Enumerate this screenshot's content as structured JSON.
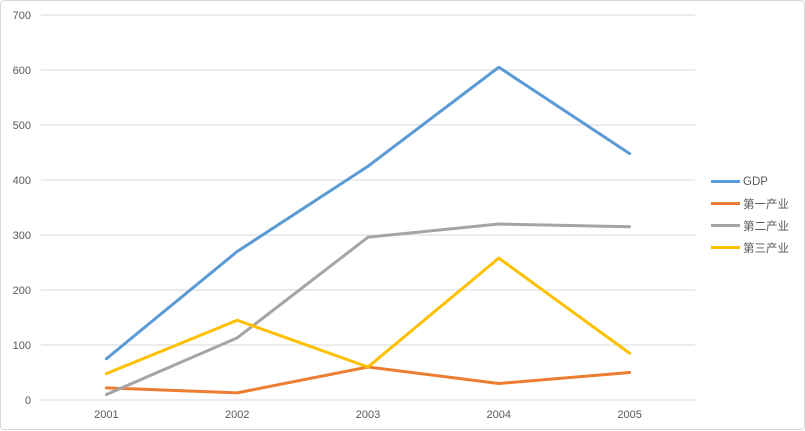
{
  "chart_data": {
    "type": "line",
    "title": "",
    "xlabel": "",
    "ylabel": "",
    "categories": [
      "2001",
      "2002",
      "2003",
      "2004",
      "2005"
    ],
    "series": [
      {
        "name": "GDP",
        "color": "#5B9BD5",
        "values": [
          75,
          270,
          425,
          605,
          448
        ]
      },
      {
        "name": "第一产业",
        "color": "#ED7D31",
        "values": [
          22,
          13,
          60,
          30,
          50
        ]
      },
      {
        "name": "第二产业",
        "color": "#A5A5A5",
        "values": [
          10,
          113,
          296,
          320,
          315
        ]
      },
      {
        "name": "第三产业",
        "color": "#FFC000",
        "values": [
          48,
          145,
          60,
          258,
          85
        ]
      }
    ],
    "ylim": [
      0,
      700
    ],
    "ytick_step": 100,
    "yticks": [
      "0",
      "100",
      "200",
      "300",
      "400",
      "500",
      "600",
      "700"
    ],
    "grid": true,
    "legend_position": "right"
  },
  "styles": {
    "grid_color": "#D9D9D9",
    "axis_label_color": "#595959",
    "frame_border_color": "#D9D9D9",
    "background": "#FFFFFF",
    "line_width": 3
  }
}
